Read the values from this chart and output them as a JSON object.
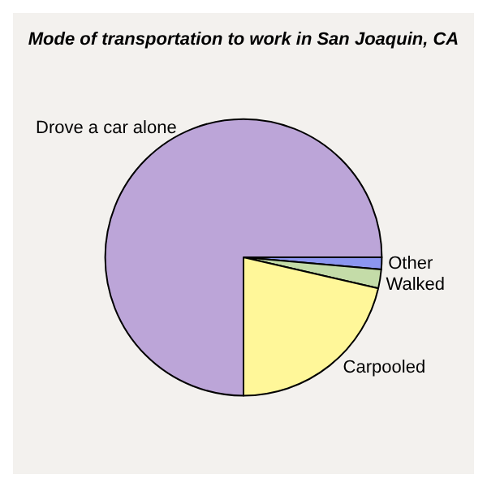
{
  "chart_data": {
    "type": "pie",
    "title": "Mode of transportation to work in San Joaquin, CA",
    "categories": [
      "Other",
      "Walked",
      "Carpooled",
      "Drove a car alone"
    ],
    "values": [
      1.4,
      2.2,
      21.4,
      75
    ],
    "colors": [
      "#8c96f0",
      "#c4dca8",
      "#fff799",
      "#bca5d8"
    ]
  }
}
